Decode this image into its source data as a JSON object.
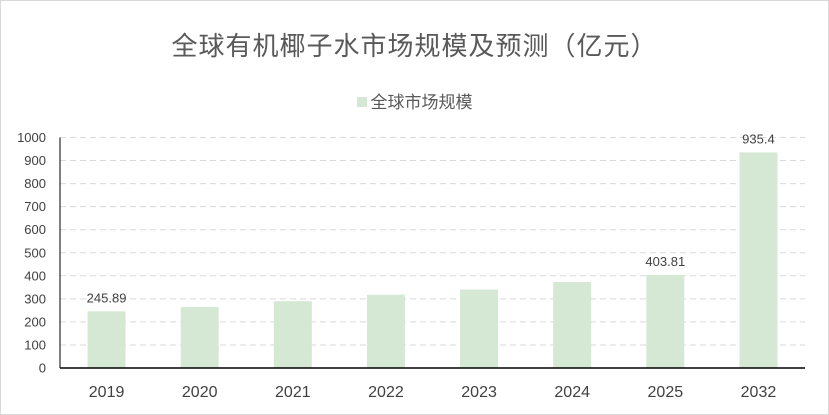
{
  "chart_data": {
    "type": "bar",
    "title": "全球有机椰子水市场规模及预测（亿元）",
    "categories": [
      "2019",
      "2020",
      "2021",
      "2022",
      "2023",
      "2024",
      "2025",
      "2032"
    ],
    "series": [
      {
        "name": "全球市场规模",
        "values": [
          245.89,
          265,
          290,
          318,
          340,
          373,
          403.81,
          935.4
        ],
        "data_labels": [
          "245.89",
          "",
          "",
          "",
          "",
          "",
          "403.81",
          "935.4"
        ]
      }
    ],
    "ylim": [
      0,
      1000
    ],
    "yticks": [
      0,
      100,
      200,
      300,
      400,
      500,
      600,
      700,
      800,
      900,
      1000
    ],
    "xlabel": "",
    "ylabel": "",
    "grid": "horizontal-dashed",
    "legend": "top-center",
    "colors": {
      "bar": "#d5e8d4",
      "grid": "#d9d9d9",
      "axis": "#000000",
      "text": "#404040",
      "title": "#595959"
    }
  }
}
